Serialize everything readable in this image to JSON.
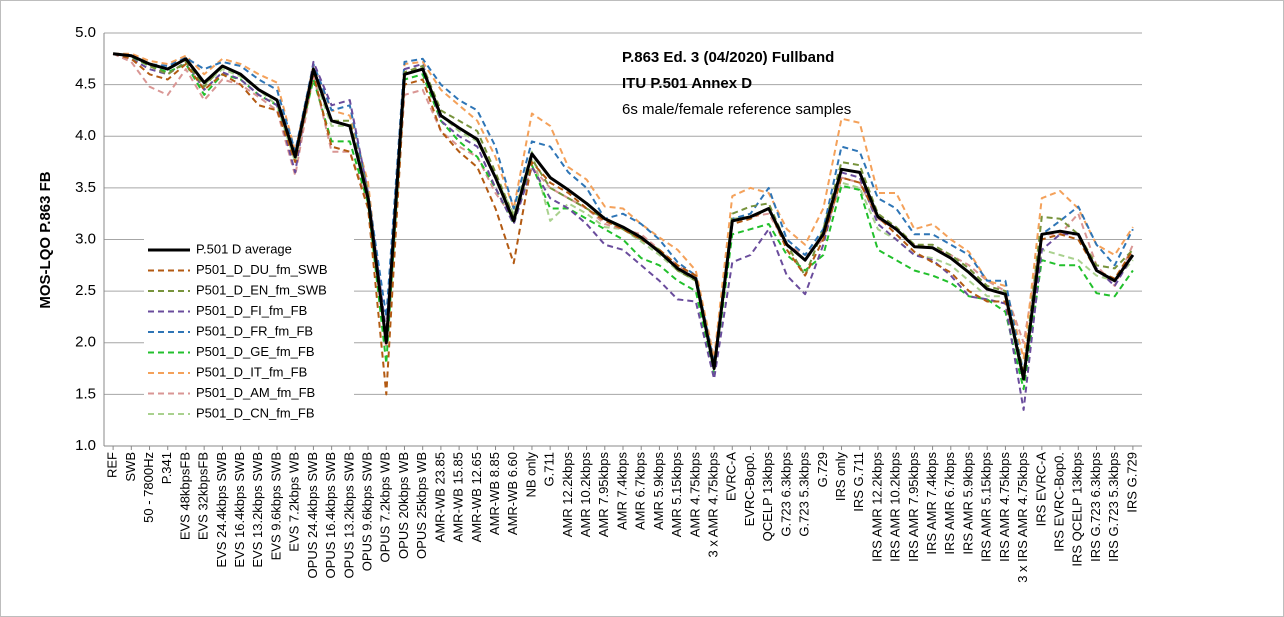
{
  "chart_data": {
    "type": "line",
    "y_label": "MOS-LQO P.863 FB",
    "annotations": [
      {
        "text": "P.863 Ed. 3 (04/2020) Fullband",
        "bold": true
      },
      {
        "text": "ITU P.501 Annex D",
        "bold": true
      },
      {
        "text": "6s male/female reference samples",
        "bold": false
      }
    ],
    "categories": [
      "REF",
      "SWB",
      "50 - 7800Hz",
      "P.341",
      "EVS 48kbpsFB",
      "EVS 32kbpsFB",
      "EVS 24.4kbps SWB",
      "EVS 16.4kbps SWB",
      "EVS 13.2kbps SWB",
      "EVS 9.6kbps SWB",
      "EVS 7.2kbps WB",
      "OPUS 24.4kbps SWB",
      "OPUS 16.4kbps SWB",
      "OPUS 13.2kbps SWB",
      "OPUS 9.6kbps SWB",
      "OPUS 7.2kbps WB",
      "OPUS 20kbps WB",
      "OPUS 25kbps WB",
      "AMR-WB 23.85",
      "AMR-WB 15.85",
      "AMR-WB 12.65",
      "AMR-WB 8.85",
      "AMR-WB 6.60",
      "NB only",
      "G.711",
      "AMR 12.2kbps",
      "AMR 10.2kbps",
      "AMR 7.95kbps",
      "AMR 7.4kbps",
      "AMR 6.7kbps",
      "AMR 5.9kbps",
      "AMR 5.15kbps",
      "AMR 4.75kbps",
      "3 x AMR 4.75kbps",
      "EVRC-A",
      "EVRC-Bop0.",
      "QCELP 13kbps",
      "G.723 6.3kbps",
      "G.723 5.3kbps",
      "G.729",
      "IRS only",
      "IRS G.711",
      "IRS AMR 12.2kbps",
      "IRS AMR 10.2kbps",
      "IRS AMR 7.95kbps",
      "IRS AMR 7.4kbps",
      "IRS AMR 6.7kbps",
      "IRS AMR 5.9kbps",
      "IRS AMR 5.15kbps",
      "IRS AMR 4.75kbps",
      "3 x IRS AMR 4.75kbps",
      "IRS EVRC-A",
      "IRS EVRC-Bop0.",
      "IRS QCELP 13kbps",
      "IRS G.723 6.3kbps",
      "IRS G.723 5.3kbps",
      "IRS G.729"
    ],
    "series": [
      {
        "name": "P.501 D average",
        "color": "#000000",
        "dashed": false,
        "values": [
          4.8,
          4.78,
          4.7,
          4.65,
          4.75,
          4.52,
          4.68,
          4.6,
          4.45,
          4.35,
          3.8,
          4.65,
          4.15,
          4.1,
          3.4,
          2.0,
          4.6,
          4.65,
          4.2,
          4.08,
          3.97,
          3.6,
          3.18,
          3.83,
          3.6,
          3.48,
          3.35,
          3.2,
          3.12,
          3.02,
          2.88,
          2.72,
          2.62,
          1.75,
          3.18,
          3.22,
          3.3,
          2.95,
          2.8,
          3.05,
          3.68,
          3.65,
          3.22,
          3.1,
          2.93,
          2.92,
          2.82,
          2.68,
          2.52,
          2.47,
          1.65,
          3.05,
          3.08,
          3.05,
          2.7,
          2.6,
          2.85
        ]
      },
      {
        "name": "P501_D_DU_fm_SWB",
        "color": "#b35a12",
        "dashed": true,
        "values": [
          4.8,
          4.75,
          4.6,
          4.55,
          4.7,
          4.45,
          4.6,
          4.5,
          4.3,
          4.25,
          3.75,
          4.6,
          3.9,
          3.85,
          3.3,
          1.5,
          4.5,
          4.55,
          4.05,
          3.85,
          3.7,
          3.3,
          2.77,
          3.75,
          3.55,
          3.45,
          3.3,
          3.18,
          3.1,
          3.0,
          2.9,
          2.75,
          2.65,
          1.75,
          3.15,
          3.2,
          3.3,
          2.9,
          2.65,
          3.0,
          3.6,
          3.55,
          3.22,
          3.05,
          2.88,
          2.78,
          2.68,
          2.5,
          2.4,
          2.4,
          1.7,
          3.0,
          3.05,
          3.0,
          2.7,
          2.62,
          2.9
        ]
      },
      {
        "name": "P501_D_EN_fm_SWB",
        "color": "#77933c",
        "dashed": true,
        "values": [
          4.8,
          4.78,
          4.68,
          4.6,
          4.72,
          4.48,
          4.68,
          4.6,
          4.45,
          4.35,
          3.8,
          4.65,
          4.15,
          4.15,
          3.45,
          2.0,
          4.62,
          4.68,
          4.25,
          4.15,
          4.05,
          3.65,
          3.22,
          3.78,
          3.5,
          3.4,
          3.3,
          3.2,
          3.1,
          3.0,
          2.9,
          2.7,
          2.6,
          1.75,
          3.25,
          3.32,
          3.35,
          2.95,
          2.65,
          3.1,
          3.75,
          3.72,
          3.25,
          3.12,
          2.95,
          2.95,
          2.85,
          2.72,
          2.55,
          2.5,
          1.7,
          3.22,
          3.2,
          3.05,
          2.75,
          2.72,
          2.9
        ]
      },
      {
        "name": "P501_D_FI_fm_FB",
        "color": "#6a4c9c",
        "dashed": true,
        "values": [
          4.8,
          4.75,
          4.65,
          4.6,
          4.72,
          4.45,
          4.62,
          4.55,
          4.4,
          4.3,
          3.65,
          4.72,
          4.3,
          4.35,
          3.45,
          2.1,
          4.65,
          4.7,
          4.15,
          4.0,
          3.9,
          3.5,
          3.15,
          3.7,
          3.4,
          3.3,
          3.15,
          2.95,
          2.9,
          2.75,
          2.6,
          2.42,
          2.4,
          1.65,
          2.78,
          2.85,
          3.1,
          2.65,
          2.47,
          2.95,
          3.65,
          3.6,
          3.15,
          3.0,
          2.85,
          2.8,
          2.65,
          2.45,
          2.42,
          2.38,
          1.35,
          2.9,
          3.05,
          3.05,
          2.72,
          2.55,
          2.85
        ]
      },
      {
        "name": "P501_D_FR_fm_FB",
        "color": "#2e75b6",
        "dashed": true,
        "values": [
          4.8,
          4.78,
          4.7,
          4.68,
          4.76,
          4.65,
          4.72,
          4.68,
          4.55,
          4.45,
          3.85,
          4.7,
          4.25,
          4.3,
          3.45,
          2.25,
          4.72,
          4.75,
          4.5,
          4.35,
          4.25,
          3.9,
          3.3,
          3.95,
          3.9,
          3.65,
          3.5,
          3.2,
          3.25,
          3.15,
          3.0,
          2.78,
          2.65,
          1.8,
          3.2,
          3.25,
          3.5,
          3.0,
          2.85,
          3.1,
          3.9,
          3.85,
          3.4,
          3.3,
          3.05,
          3.05,
          2.95,
          2.85,
          2.6,
          2.6,
          1.7,
          3.05,
          3.18,
          3.32,
          2.95,
          2.75,
          3.1
        ]
      },
      {
        "name": "P501_D_GE_fm_FB",
        "color": "#22c02c",
        "dashed": true,
        "values": [
          4.8,
          4.77,
          4.68,
          4.62,
          4.7,
          4.4,
          4.6,
          4.55,
          4.4,
          4.3,
          3.8,
          4.55,
          3.95,
          3.95,
          3.35,
          1.8,
          4.55,
          4.6,
          4.15,
          3.95,
          3.8,
          3.5,
          3.15,
          3.72,
          3.3,
          3.3,
          3.2,
          3.1,
          3.0,
          2.82,
          2.75,
          2.6,
          2.5,
          1.7,
          3.05,
          3.1,
          3.15,
          2.85,
          2.7,
          2.85,
          3.52,
          3.48,
          2.9,
          2.8,
          2.7,
          2.65,
          2.58,
          2.45,
          2.42,
          2.3,
          1.55,
          2.8,
          2.75,
          2.75,
          2.48,
          2.45,
          2.7
        ]
      },
      {
        "name": "P501_D_IT_fm_FB",
        "color": "#f4a15a",
        "dashed": true,
        "values": [
          4.8,
          4.8,
          4.73,
          4.7,
          4.78,
          4.6,
          4.75,
          4.7,
          4.6,
          4.52,
          3.85,
          4.68,
          4.25,
          4.2,
          3.55,
          2.0,
          4.7,
          4.72,
          4.45,
          4.3,
          4.15,
          3.8,
          3.3,
          4.22,
          4.1,
          3.7,
          3.58,
          3.32,
          3.3,
          3.15,
          3.02,
          2.9,
          2.7,
          1.85,
          3.42,
          3.5,
          3.45,
          3.1,
          2.95,
          3.3,
          4.17,
          4.13,
          3.45,
          3.45,
          3.1,
          3.15,
          3.0,
          2.88,
          2.6,
          2.55,
          1.85,
          3.4,
          3.47,
          3.3,
          2.95,
          2.85,
          3.12
        ]
      },
      {
        "name": "P501_D_AM_fm_FB",
        "color": "#d99694",
        "dashed": true,
        "values": [
          4.8,
          4.72,
          4.48,
          4.4,
          4.65,
          4.35,
          4.55,
          4.5,
          4.38,
          4.25,
          3.62,
          4.6,
          3.85,
          3.85,
          3.35,
          1.95,
          4.4,
          4.45,
          4.05,
          3.9,
          3.8,
          3.45,
          3.2,
          3.7,
          3.5,
          3.4,
          3.3,
          3.15,
          3.1,
          3.05,
          2.9,
          2.75,
          2.62,
          1.85,
          3.18,
          3.22,
          3.25,
          2.95,
          2.85,
          3.0,
          3.6,
          3.55,
          3.2,
          3.1,
          2.95,
          2.92,
          2.85,
          2.75,
          2.6,
          2.5,
          2.0,
          3.05,
          3.05,
          3.25,
          2.75,
          2.55,
          2.95
        ]
      },
      {
        "name": "P501_D_CN_fm_FB",
        "color": "#a9d18e",
        "dashed": true,
        "values": [
          4.8,
          4.78,
          4.7,
          4.65,
          4.75,
          4.5,
          4.65,
          4.58,
          4.45,
          4.3,
          3.75,
          4.6,
          4.1,
          4.1,
          3.4,
          1.95,
          4.6,
          4.65,
          4.2,
          4.05,
          3.95,
          3.6,
          3.25,
          3.85,
          3.18,
          3.35,
          3.25,
          3.12,
          3.1,
          2.98,
          2.85,
          2.7,
          2.6,
          1.7,
          3.2,
          3.22,
          3.3,
          2.95,
          2.8,
          3.05,
          3.55,
          3.5,
          3.1,
          3.0,
          2.85,
          2.82,
          2.75,
          2.6,
          2.45,
          2.45,
          1.62,
          2.9,
          2.85,
          2.8,
          2.65,
          2.6,
          2.8
        ]
      }
    ],
    "ylim": [
      1,
      5
    ],
    "yticks": [
      {
        "value": 1,
        "label": "1.0"
      },
      1.5,
      {
        "value": 2,
        "label": "2.0"
      },
      2.5,
      {
        "value": 3,
        "label": "3.0"
      },
      3.5,
      {
        "value": 4,
        "label": "4.0"
      },
      4.5,
      {
        "value": 5,
        "label": "5.0"
      }
    ],
    "grid": true,
    "legend": "left"
  }
}
